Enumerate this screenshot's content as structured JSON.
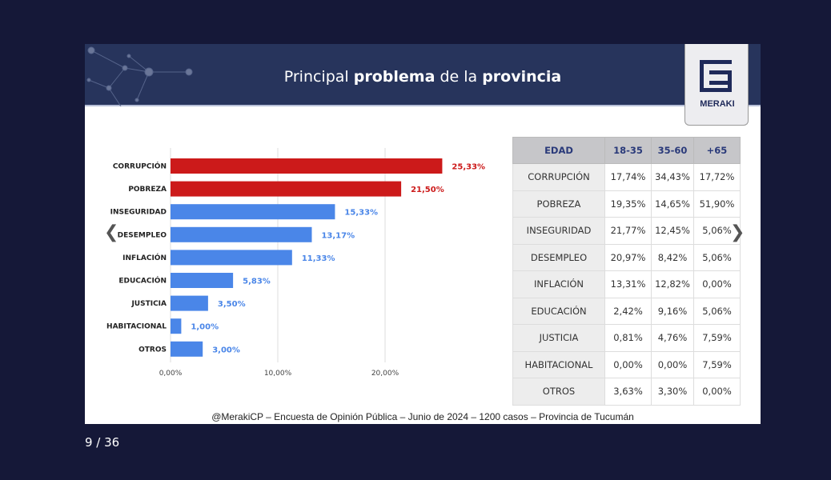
{
  "slide": {
    "title_parts": [
      {
        "text": "Principal ",
        "bold": false
      },
      {
        "text": "problema",
        "bold": true
      },
      {
        "text": " de la ",
        "bold": false
      },
      {
        "text": "provincia",
        "bold": true
      }
    ],
    "logo_text": "MERAKI",
    "footer": "@MerakiCP – Encuesta de Opinión Pública – Junio de 2024 – 1200 casos – Provincia de Tucumán"
  },
  "chart_data": {
    "type": "bar",
    "orientation": "horizontal",
    "categories": [
      "CORRUPCIÓN",
      "POBREZA",
      "INSEGURIDAD",
      "DESEMPLEO",
      "INFLACIÓN",
      "EDUCACIÓN",
      "JUSTICIA",
      "HABITACIONAL",
      "OTROS"
    ],
    "values": [
      25.33,
      21.5,
      15.33,
      13.17,
      11.33,
      5.83,
      3.5,
      1.0,
      3.0
    ],
    "data_labels": [
      "25,33%",
      "21,50%",
      "15,33%",
      "13,17%",
      "11,33%",
      "5,83%",
      "3,50%",
      "1,00%",
      "3,00%"
    ],
    "colors": [
      "#cc1a1a",
      "#cc1a1a",
      "#4a86e8",
      "#4a86e8",
      "#4a86e8",
      "#4a86e8",
      "#4a86e8",
      "#4a86e8",
      "#4a86e8"
    ],
    "xticks": [
      0,
      10,
      20
    ],
    "xtick_labels": [
      "0,00%",
      "10,00%",
      "20,00%"
    ],
    "xlim": [
      0,
      27
    ],
    "grid": true
  },
  "table": {
    "headers": [
      "EDAD",
      "18-35",
      "35-60",
      "+65"
    ],
    "rows": [
      [
        "CORRUPCIÓN",
        "17,74%",
        "34,43%",
        "17,72%"
      ],
      [
        "POBREZA",
        "19,35%",
        "14,65%",
        "51,90%"
      ],
      [
        "INSEGURIDAD",
        "21,77%",
        "12,45%",
        "5,06%"
      ],
      [
        "DESEMPLEO",
        "20,97%",
        "8,42%",
        "5,06%"
      ],
      [
        "INFLACIÓN",
        "13,31%",
        "12,82%",
        "0,00%"
      ],
      [
        "EDUCACIÓN",
        "2,42%",
        "9,16%",
        "5,06%"
      ],
      [
        "JUSTICIA",
        "0,81%",
        "4,76%",
        "7,59%"
      ],
      [
        "HABITACIONAL",
        "0,00%",
        "0,00%",
        "7,59%"
      ],
      [
        "OTROS",
        "3,63%",
        "3,30%",
        "0,00%"
      ]
    ]
  },
  "viewer": {
    "prev_icon": "chevron-left-icon",
    "next_icon": "chevron-right-icon",
    "page": "9 / 36"
  }
}
